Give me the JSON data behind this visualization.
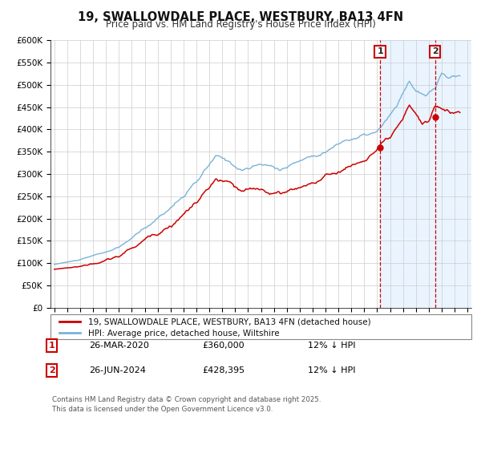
{
  "title": "19, SWALLOWDALE PLACE, WESTBURY, BA13 4FN",
  "subtitle": "Price paid vs. HM Land Registry's House Price Index (HPI)",
  "legend_line1": "19, SWALLOWDALE PLACE, WESTBURY, BA13 4FN (detached house)",
  "legend_line2": "HPI: Average price, detached house, Wiltshire",
  "annotation1_date": "26-MAR-2020",
  "annotation1_price": "£360,000",
  "annotation1_hpi": "12% ↓ HPI",
  "annotation1_year": 2020.23,
  "annotation1_value": 360000,
  "annotation2_date": "26-JUN-2024",
  "annotation2_price": "£428,395",
  "annotation2_hpi": "12% ↓ HPI",
  "annotation2_year": 2024.49,
  "annotation2_value": 428395,
  "hpi_color": "#7ab3d8",
  "price_color": "#cc0000",
  "vline_color": "#cc0000",
  "background_color": "#ffffff",
  "shaded_region_color": "#ddeeff",
  "ylim": [
    0,
    600000
  ],
  "yticks": [
    0,
    50000,
    100000,
    150000,
    200000,
    250000,
    300000,
    350000,
    400000,
    450000,
    500000,
    550000,
    600000
  ],
  "xlim_start": 1995,
  "xlim_end": 2027,
  "footer": "Contains HM Land Registry data © Crown copyright and database right 2025.\nThis data is licensed under the Open Government Licence v3.0."
}
